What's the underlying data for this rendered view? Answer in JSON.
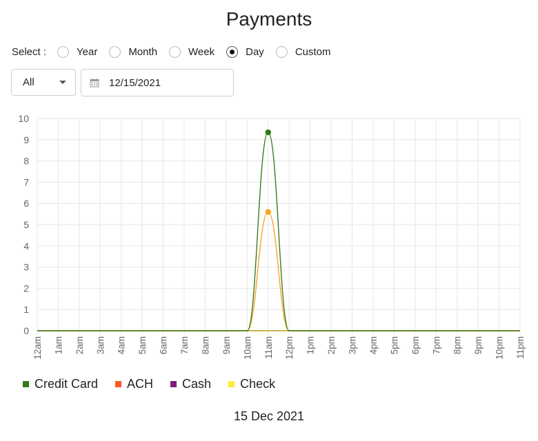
{
  "title": "Payments",
  "select": {
    "label": "Select :",
    "options": [
      "Year",
      "Month",
      "Week",
      "Day",
      "Custom"
    ],
    "selected": "Day"
  },
  "filter": {
    "value": "All"
  },
  "date_input": {
    "value": "12/15/2021"
  },
  "icons": {
    "calendar": "calendar-icon",
    "dropdown": "chevron-down-icon"
  },
  "date_caption": "15 Dec 2021",
  "chart_data": {
    "type": "line",
    "x": [
      "12am",
      "1am",
      "2am",
      "3am",
      "4am",
      "5am",
      "6am",
      "7am",
      "8am",
      "9am",
      "10am",
      "11am",
      "12pm",
      "1pm",
      "2pm",
      "3pm",
      "4pm",
      "5pm",
      "6pm",
      "7pm",
      "8pm",
      "9pm",
      "10pm",
      "11pm"
    ],
    "series": [
      {
        "name": "Credit Card",
        "color": "#2e7d1a",
        "values": [
          0,
          0,
          0,
          0,
          0,
          0,
          0,
          0,
          0,
          0,
          0,
          9.35,
          0,
          0,
          0,
          0,
          0,
          0,
          0,
          0,
          0,
          0,
          0,
          0
        ]
      },
      {
        "name": "ACH",
        "color": "#ff5722",
        "values": [
          0,
          0,
          0,
          0,
          0,
          0,
          0,
          0,
          0,
          0,
          0,
          5.6,
          0,
          0,
          0,
          0,
          0,
          0,
          0,
          0,
          0,
          0,
          0,
          0
        ]
      },
      {
        "name": "Cash",
        "color": "#7b1f7a",
        "values": [
          0,
          0,
          0,
          0,
          0,
          0,
          0,
          0,
          0,
          0,
          0,
          0,
          0,
          0,
          0,
          0,
          0,
          0,
          0,
          0,
          0,
          0,
          0,
          0
        ]
      },
      {
        "name": "Check",
        "color": "#ffeb3b",
        "values": [
          0,
          0,
          0,
          0,
          0,
          0,
          0,
          0,
          0,
          0,
          0,
          0,
          0,
          0,
          0,
          0,
          0,
          0,
          0,
          0,
          0,
          0,
          0,
          0
        ]
      }
    ],
    "marker_colors": {
      "Credit Card": "#2e7d1a",
      "ACH": "#f5a623"
    },
    "ylim": [
      0,
      10
    ],
    "yticks": [
      0,
      1,
      2,
      3,
      4,
      5,
      6,
      7,
      8,
      9,
      10
    ],
    "grid": true,
    "legend": "bottom-left"
  }
}
